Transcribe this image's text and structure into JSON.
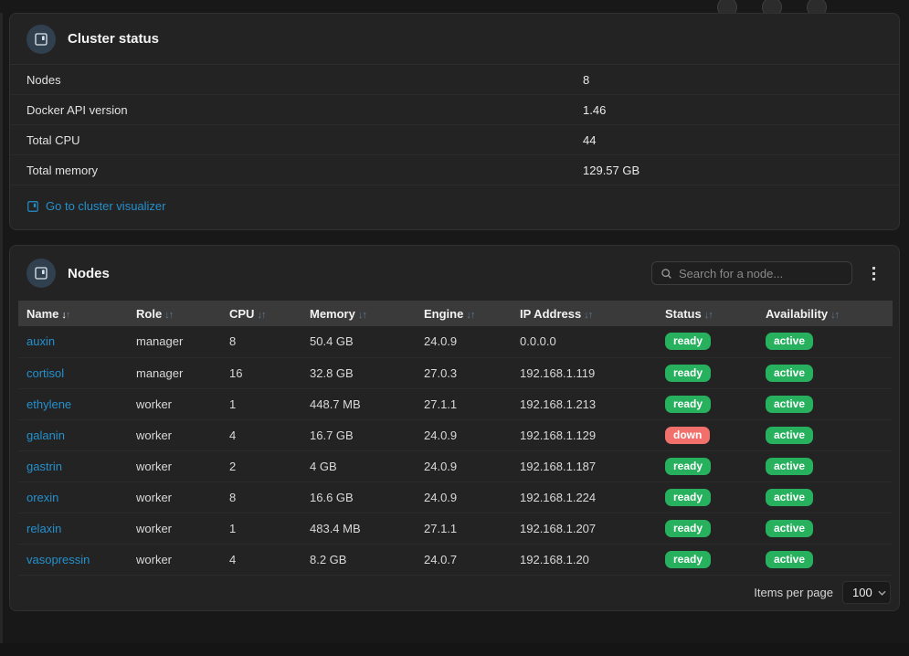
{
  "colors": {
    "page_bg": "#181818",
    "panel_bg": "#232323",
    "panel_border": "#313131",
    "table_header_bg": "#3a3a3a",
    "link": "#2590cc",
    "green": "#27b15e",
    "red": "#f1706b",
    "icon_circle_bg": "#31404f"
  },
  "cluster_status": {
    "title": "Cluster status",
    "rows": [
      {
        "label": "Nodes",
        "value": "8"
      },
      {
        "label": "Docker API version",
        "value": "1.46"
      },
      {
        "label": "Total CPU",
        "value": "44"
      },
      {
        "label": "Total memory",
        "value": "129.57 GB"
      }
    ],
    "link_label": "Go to cluster visualizer"
  },
  "nodes_panel": {
    "title": "Nodes",
    "search": {
      "placeholder": "Search for a node..."
    },
    "sort": {
      "column": "Name",
      "direction": "down"
    },
    "columns": [
      "Name",
      "Role",
      "CPU",
      "Memory",
      "Engine",
      "IP Address",
      "Status",
      "Availability"
    ],
    "rows": [
      {
        "name": "auxin",
        "role": "manager",
        "cpu": "8",
        "memory": "50.4 GB",
        "engine": "24.0.9",
        "ip": "0.0.0.0",
        "status": "ready",
        "availability": "active"
      },
      {
        "name": "cortisol",
        "role": "manager",
        "cpu": "16",
        "memory": "32.8 GB",
        "engine": "27.0.3",
        "ip": "192.168.1.119",
        "status": "ready",
        "availability": "active"
      },
      {
        "name": "ethylene",
        "role": "worker",
        "cpu": "1",
        "memory": "448.7 MB",
        "engine": "27.1.1",
        "ip": "192.168.1.213",
        "status": "ready",
        "availability": "active"
      },
      {
        "name": "galanin",
        "role": "worker",
        "cpu": "4",
        "memory": "16.7 GB",
        "engine": "24.0.9",
        "ip": "192.168.1.129",
        "status": "down",
        "availability": "active"
      },
      {
        "name": "gastrin",
        "role": "worker",
        "cpu": "2",
        "memory": "4 GB",
        "engine": "24.0.9",
        "ip": "192.168.1.187",
        "status": "ready",
        "availability": "active"
      },
      {
        "name": "orexin",
        "role": "worker",
        "cpu": "8",
        "memory": "16.6 GB",
        "engine": "24.0.9",
        "ip": "192.168.1.224",
        "status": "ready",
        "availability": "active"
      },
      {
        "name": "relaxin",
        "role": "worker",
        "cpu": "1",
        "memory": "483.4 MB",
        "engine": "27.1.1",
        "ip": "192.168.1.207",
        "status": "ready",
        "availability": "active"
      },
      {
        "name": "vasopressin",
        "role": "worker",
        "cpu": "4",
        "memory": "8.2 GB",
        "engine": "24.0.7",
        "ip": "192.168.1.20",
        "status": "ready",
        "availability": "active"
      }
    ],
    "footer": {
      "items_per_page_label": "Items per page",
      "items_per_page_value": "100"
    }
  }
}
